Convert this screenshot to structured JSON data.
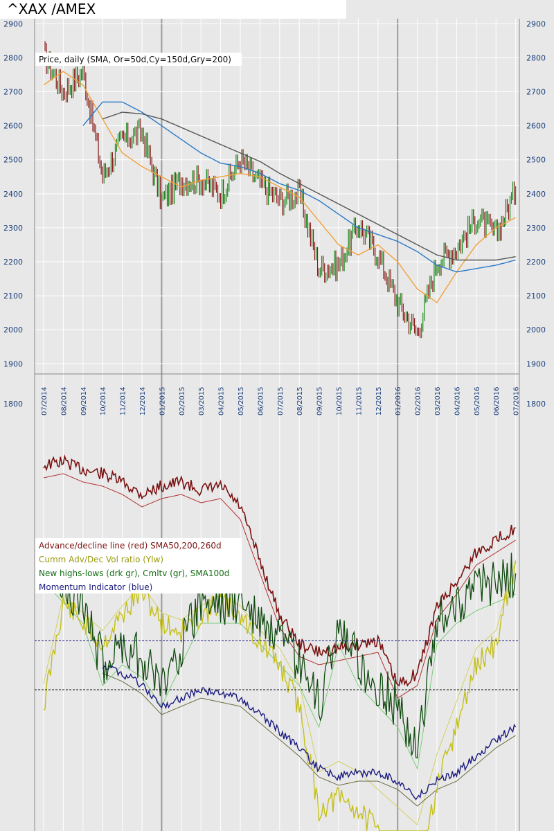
{
  "title": "^XAX /AMEX",
  "chart_data": {
    "type": "line",
    "title": "^XAX /AMEX",
    "price_legend": "Price, daily (SMA, Or=50d,Cy=150d,Gry=200)",
    "y_axis": {
      "range": [
        1870,
        2915
      ],
      "ticks": [
        1800,
        1900,
        2000,
        2100,
        2200,
        2300,
        2400,
        2500,
        2600,
        2700,
        2800,
        2900
      ]
    },
    "x_axis": {
      "labels": [
        "07/2014",
        "08/2014",
        "09/2014",
        "10/2014",
        "11/2014",
        "12/2014",
        "01/2015",
        "02/2015",
        "03/2015",
        "04/2015",
        "05/2015",
        "06/2015",
        "07/2015",
        "08/2015",
        "09/2015",
        "10/2015",
        "11/2015",
        "12/2015",
        "01/2016",
        "02/2016",
        "03/2016",
        "04/2016",
        "05/2016",
        "06/2016",
        "07/2016"
      ]
    },
    "year_separators": [
      "01/2015",
      "01/2016"
    ],
    "price": {
      "dates": [
        "07/2014",
        "08/2014",
        "09/2014",
        "10/2014",
        "11/2014",
        "12/2014",
        "01/2015",
        "02/2015",
        "03/2015",
        "04/2015",
        "05/2015",
        "06/2015",
        "07/2015",
        "08/2015",
        "09/2015",
        "10/2015",
        "11/2015",
        "12/2015",
        "01/2016",
        "02/2016",
        "03/2016",
        "04/2016",
        "05/2016",
        "06/2016",
        "07/2016"
      ],
      "close": [
        2810,
        2700,
        2760,
        2450,
        2560,
        2580,
        2380,
        2440,
        2440,
        2400,
        2500,
        2430,
        2380,
        2400,
        2180,
        2190,
        2310,
        2220,
        2080,
        1990,
        2200,
        2240,
        2330,
        2280,
        2410
      ]
    },
    "series": [
      {
        "name": "SMA50d",
        "color": "#f2a13a",
        "values": [
          2720,
          2760,
          2720,
          2620,
          2520,
          2480,
          2450,
          2420,
          2440,
          2450,
          2460,
          2450,
          2420,
          2390,
          2320,
          2250,
          2220,
          2250,
          2200,
          2120,
          2080,
          2170,
          2250,
          2300,
          2330
        ]
      },
      {
        "name": "SMA150d",
        "color": "#2a78c8",
        "values": [
          null,
          null,
          2600,
          2670,
          2670,
          2640,
          2600,
          2560,
          2520,
          2490,
          2480,
          2460,
          2430,
          2410,
          2380,
          2340,
          2300,
          2280,
          2260,
          2230,
          2190,
          2170,
          2180,
          2190,
          2205
        ]
      },
      {
        "name": "SMA200d",
        "color": "#555555",
        "values": [
          null,
          null,
          null,
          2620,
          2640,
          2635,
          2620,
          2595,
          2570,
          2545,
          2520,
          2495,
          2460,
          2430,
          2400,
          2370,
          2340,
          2310,
          2280,
          2250,
          2220,
          2205,
          2205,
          2205,
          2215
        ]
      }
    ],
    "legend": [
      {
        "text": "Advance/decline line (red) SMA50,200,260d",
        "color": "#7a1010"
      },
      {
        "text": "Cumm Adv/Dec Vol ratio (Ylw)",
        "color": "#9a9a10"
      },
      {
        "text": "New highs-lows (drk gr), Cmltv (gr), SMA100d",
        "color": "#136c13"
      },
      {
        "text": "Momentum Indicator (blue)",
        "color": "#1a1a80"
      }
    ],
    "breadth": {
      "advance_decline": [
        0.12,
        0.11,
        0.13,
        0.14,
        0.16,
        0.19,
        0.17,
        0.16,
        0.18,
        0.17,
        0.22,
        0.35,
        0.48,
        0.55,
        0.57,
        0.56,
        0.55,
        0.54,
        0.65,
        0.62,
        0.46,
        0.4,
        0.33,
        0.3,
        0.27
      ],
      "adv_vol_ratio": [
        0.7,
        0.45,
        0.5,
        0.55,
        0.48,
        0.42,
        0.5,
        0.52,
        0.48,
        0.45,
        0.48,
        0.55,
        0.6,
        0.7,
        0.95,
        0.92,
        0.95,
        1.0,
        1.05,
        1.1,
        0.9,
        0.75,
        0.6,
        0.55,
        0.35
      ],
      "momentum": [
        null,
        null,
        null,
        0.6,
        0.62,
        0.65,
        0.7,
        0.68,
        0.66,
        0.67,
        0.68,
        0.72,
        0.76,
        0.8,
        0.85,
        0.87,
        0.86,
        0.86,
        0.88,
        0.92,
        0.88,
        0.86,
        0.82,
        0.78,
        0.75
      ],
      "new_highs_lows": [
        0.35,
        0.4,
        0.45,
        0.6,
        0.55,
        0.58,
        0.65,
        0.55,
        0.45,
        0.45,
        0.45,
        0.5,
        0.55,
        0.6,
        0.7,
        0.5,
        0.6,
        0.65,
        0.7,
        0.8,
        0.5,
        0.45,
        0.42,
        0.4,
        0.38
      ]
    }
  }
}
